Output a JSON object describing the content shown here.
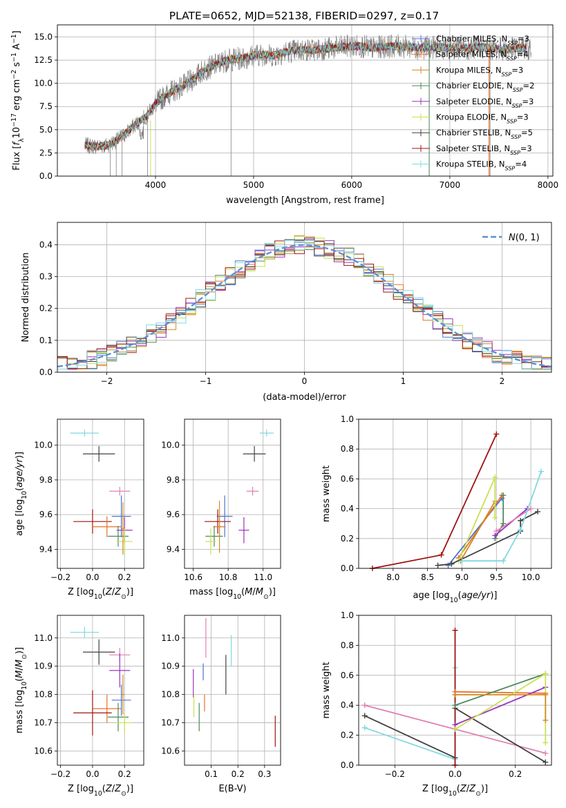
{
  "title": "PLATE=0652, MJD=52138, FIBERID=0297, z=0.17",
  "colors": {
    "chabrier_miles": "#4c72d0",
    "salpeter_miles": "#e8702a",
    "kroupa_miles": "#d08a20",
    "chabrier_elodie": "#4a8a5a",
    "salpeter_elodie": "#9b30c0",
    "kroupa_elodie": "#c8e050",
    "chabrier_stelib": "#404040",
    "salpeter_stelib": "#a01010",
    "kroupa_stelib": "#80d8e0",
    "pink": "#e080b0",
    "data": "#808080",
    "gauss": "#5b8fd6"
  },
  "chart_data": [
    {
      "type": "line",
      "id": "spectrum",
      "title": "PLATE=0652, MJD=52138, FIBERID=0297, z=0.17",
      "xlabel": "wavelength [Angstrom, rest frame]",
      "ylabel": "Flux [f_λ10^-17 erg cm^-2 s^-1 A^-1]",
      "xlim": [
        3000,
        8050
      ],
      "ylim": [
        0,
        16.3
      ],
      "xticks": [
        4000,
        5000,
        6000,
        7000,
        8000
      ],
      "yticks": [
        0.0,
        2.5,
        5.0,
        7.5,
        10.0,
        12.5,
        15.0
      ],
      "legend_position": "right",
      "legend": [
        "Chabrier MILES, N_SSP=3",
        "Salpeter MILES, N_SSP=4",
        "Kroupa MILES, N_SSP=3",
        "Chabrier ELODIE, N_SSP=2",
        "Salpeter ELODIE, N_SSP=3",
        "Kroupa ELODIE, N_SSP=3",
        "Chabrier STELIB, N_SSP=5",
        "Salpeter STELIB, N_SSP=3",
        "Kroupa STELIB, N_SSP=4"
      ],
      "continuum": [
        [
          3300,
          3.3
        ],
        [
          3400,
          3.2
        ],
        [
          3500,
          3.3
        ],
        [
          3600,
          3.8
        ],
        [
          3700,
          4.6
        ],
        [
          3800,
          5.6
        ],
        [
          3900,
          6.4
        ],
        [
          4000,
          7.8
        ],
        [
          4100,
          8.7
        ],
        [
          4200,
          9.3
        ],
        [
          4300,
          9.8
        ],
        [
          4400,
          10.6
        ],
        [
          4500,
          11.5
        ],
        [
          4600,
          11.9
        ],
        [
          4700,
          12.4
        ],
        [
          4800,
          12.6
        ],
        [
          4900,
          12.7
        ],
        [
          5000,
          13.0
        ],
        [
          5100,
          13.1
        ],
        [
          5200,
          13.0
        ],
        [
          5300,
          13.3
        ],
        [
          5400,
          13.5
        ],
        [
          5500,
          13.6
        ],
        [
          5600,
          13.6
        ],
        [
          5700,
          13.7
        ],
        [
          5800,
          13.8
        ],
        [
          5900,
          13.9
        ],
        [
          6000,
          14.0
        ],
        [
          6100,
          14.0
        ],
        [
          6200,
          13.8
        ],
        [
          6300,
          13.9
        ],
        [
          6400,
          14.0
        ],
        [
          6500,
          14.0
        ],
        [
          6600,
          13.9
        ],
        [
          6700,
          13.8
        ],
        [
          6800,
          13.9
        ],
        [
          6900,
          13.9
        ],
        [
          7000,
          13.8
        ],
        [
          7100,
          13.8
        ],
        [
          7200,
          13.8
        ],
        [
          7300,
          13.9
        ],
        [
          7400,
          13.8
        ],
        [
          7500,
          13.7
        ],
        [
          7600,
          13.7
        ],
        [
          7700,
          13.8
        ],
        [
          7800,
          13.8
        ]
      ]
    },
    {
      "type": "line",
      "id": "residuals",
      "xlabel": "(data-model)/error",
      "ylabel": "Normed distribution",
      "xlim": [
        -2.5,
        2.5
      ],
      "ylim": [
        0,
        0.47
      ],
      "xticks": [
        -2,
        -1,
        0,
        1,
        2
      ],
      "yticks": [
        0.0,
        0.1,
        0.2,
        0.3,
        0.4
      ],
      "legend": [
        "N(0,1)"
      ],
      "legend_position": "top-right"
    },
    {
      "type": "scatter",
      "id": "age_vs_Z",
      "xlabel": "Z [log10(Z/Z⊙)]",
      "ylabel": "age [log10(age/yr)]",
      "xlim": [
        -0.22,
        0.32
      ],
      "ylim": [
        9.29,
        10.15
      ],
      "xticks": [
        -0.2,
        0.0,
        0.2
      ],
      "yticks": [
        9.4,
        9.6,
        9.8,
        10.0
      ],
      "points": [
        {
          "x": -0.05,
          "y": 10.07,
          "dx": 0.18,
          "dy": 0.04,
          "c": "kroupa_stelib"
        },
        {
          "x": 0.04,
          "y": 9.95,
          "dx": 0.2,
          "dy": 0.09,
          "c": "chabrier_stelib"
        },
        {
          "x": 0.17,
          "y": 9.735,
          "dx": 0.13,
          "dy": 0.05,
          "c": "pink"
        },
        {
          "x": 0.18,
          "y": 9.59,
          "dx": 0.12,
          "dy": 0.24,
          "c": "chabrier_miles"
        },
        {
          "x": 0.0,
          "y": 9.56,
          "dx": 0.24,
          "dy": 0.14,
          "c": "salpeter_stelib"
        },
        {
          "x": 0.09,
          "y": 9.53,
          "dx": 0.18,
          "dy": 0.12,
          "c": "salpeter_miles"
        },
        {
          "x": 0.2,
          "y": 9.51,
          "dx": 0.1,
          "dy": 0.15,
          "c": "salpeter_elodie"
        },
        {
          "x": 0.16,
          "y": 9.475,
          "dx": 0.13,
          "dy": 0.12,
          "c": "chabrier_elodie"
        },
        {
          "x": 0.2,
          "y": 9.445,
          "dx": 0.1,
          "dy": 0.15,
          "c": "kroupa_elodie"
        },
        {
          "x": 0.19,
          "y": 9.52,
          "dx": 0.02,
          "dy": 0.3,
          "c": "kroupa_miles"
        }
      ]
    },
    {
      "type": "scatter",
      "id": "age_vs_mass",
      "xlabel": "mass [log10(M/M⊙)]",
      "ylabel": "",
      "xlim": [
        10.55,
        11.1
      ],
      "ylim": [
        9.29,
        10.15
      ],
      "xticks": [
        10.6,
        10.8,
        11.0
      ],
      "yticks": [
        9.4,
        9.6,
        9.8,
        10.0
      ],
      "points": [
        {
          "x": 11.02,
          "y": 10.07,
          "dx": 0.08,
          "dy": 0.04,
          "c": "kroupa_stelib"
        },
        {
          "x": 10.95,
          "y": 9.95,
          "dx": 0.13,
          "dy": 0.09,
          "c": "chabrier_stelib"
        },
        {
          "x": 10.94,
          "y": 9.735,
          "dx": 0.07,
          "dy": 0.05,
          "c": "pink"
        },
        {
          "x": 10.78,
          "y": 9.59,
          "dx": 0.09,
          "dy": 0.24,
          "c": "chabrier_miles"
        },
        {
          "x": 10.74,
          "y": 9.56,
          "dx": 0.15,
          "dy": 0.14,
          "c": "salpeter_stelib"
        },
        {
          "x": 10.75,
          "y": 9.53,
          "dx": 0.07,
          "dy": 0.12,
          "c": "salpeter_miles"
        },
        {
          "x": 10.89,
          "y": 9.51,
          "dx": 0.06,
          "dy": 0.15,
          "c": "salpeter_elodie"
        },
        {
          "x": 10.72,
          "y": 9.475,
          "dx": 0.1,
          "dy": 0.12,
          "c": "chabrier_elodie"
        },
        {
          "x": 10.7,
          "y": 9.445,
          "dx": 0.06,
          "dy": 0.15,
          "c": "kroupa_elodie"
        },
        {
          "x": 10.75,
          "y": 9.53,
          "dx": 0.02,
          "dy": 0.3,
          "c": "kroupa_miles"
        }
      ]
    },
    {
      "type": "line",
      "id": "weight_vs_age",
      "xlabel": "age [log10(age/yr)]",
      "ylabel": "mass weight",
      "xlim": [
        7.5,
        10.3
      ],
      "ylim": [
        0,
        1.0
      ],
      "xticks": [
        8.0,
        8.5,
        9.0,
        9.5,
        10.0
      ],
      "yticks": [
        0.0,
        0.2,
        0.4,
        0.6,
        0.8,
        1.0
      ],
      "series": [
        {
          "c": "salpeter_stelib",
          "points": [
            [
              7.7,
              0.0
            ],
            [
              8.7,
              0.09
            ],
            [
              9.5,
              0.9
            ]
          ]
        },
        {
          "c": "chabrier_miles",
          "points": [
            [
              8.8,
              0.02
            ],
            [
              9.58,
              0.47
            ]
          ]
        },
        {
          "c": "salpeter_miles",
          "points": [
            [
              8.95,
              0.07
            ],
            [
              9.58,
              0.49
            ]
          ]
        },
        {
          "c": "kroupa_miles",
          "points": [
            [
              8.98,
              0.05
            ],
            [
              9.48,
              0.45
            ]
          ]
        },
        {
          "c": "kroupa_elodie",
          "points": [
            [
              8.95,
              0.05
            ],
            [
              9.48,
              0.61
            ],
            [
              9.48,
              0.34
            ]
          ]
        },
        {
          "c": "chabrier_elodie",
          "points": [
            [
              9.48,
              0.2
            ],
            [
              9.6,
              0.3
            ],
            [
              9.6,
              0.49
            ]
          ]
        },
        {
          "c": "salpeter_elodie",
          "points": [
            [
              9.48,
              0.22
            ],
            [
              9.95,
              0.4
            ]
          ]
        },
        {
          "c": "pink",
          "points": [
            [
              9.5,
              0.25
            ],
            [
              10.0,
              0.4
            ]
          ]
        },
        {
          "c": "chabrier_stelib",
          "points": [
            [
              8.65,
              0.02
            ],
            [
              8.85,
              0.03
            ],
            [
              9.85,
              0.25
            ],
            [
              9.85,
              0.32
            ],
            [
              10.1,
              0.38
            ]
          ]
        },
        {
          "c": "kroupa_stelib",
          "points": [
            [
              9.0,
              0.05
            ],
            [
              9.6,
              0.05
            ],
            [
              9.85,
              0.26
            ],
            [
              10.15,
              0.65
            ]
          ]
        }
      ]
    },
    {
      "type": "scatter",
      "id": "mass_vs_Z",
      "xlabel": "Z [log10(Z/Z⊙)]",
      "ylabel": "mass [log10(M/M⊙)]",
      "xlim": [
        -0.22,
        0.32
      ],
      "ylim": [
        10.55,
        11.08
      ],
      "xticks": [
        -0.2,
        0.0,
        0.2
      ],
      "yticks": [
        10.6,
        10.7,
        10.8,
        10.9,
        11.0
      ],
      "points": [
        {
          "x": -0.05,
          "y": 11.02,
          "dx": 0.18,
          "dy": 0.04,
          "c": "kroupa_stelib"
        },
        {
          "x": 0.04,
          "y": 10.95,
          "dx": 0.2,
          "dy": 0.09,
          "c": "chabrier_stelib"
        },
        {
          "x": 0.17,
          "y": 10.94,
          "dx": 0.13,
          "dy": 0.05,
          "c": "pink"
        },
        {
          "x": 0.17,
          "y": 10.885,
          "dx": 0.13,
          "dy": 0.12,
          "c": "salpeter_elodie"
        },
        {
          "x": 0.18,
          "y": 10.78,
          "dx": 0.12,
          "dy": 0.11,
          "c": "chabrier_miles"
        },
        {
          "x": 0.09,
          "y": 10.75,
          "dx": 0.18,
          "dy": 0.1,
          "c": "salpeter_miles"
        },
        {
          "x": 0.0,
          "y": 10.735,
          "dx": 0.24,
          "dy": 0.16,
          "c": "salpeter_stelib"
        },
        {
          "x": 0.16,
          "y": 10.72,
          "dx": 0.13,
          "dy": 0.1,
          "c": "chabrier_elodie"
        },
        {
          "x": 0.2,
          "y": 10.7,
          "dx": 0.1,
          "dy": 0.07,
          "c": "kroupa_elodie"
        },
        {
          "x": 0.19,
          "y": 10.8,
          "dx": 0.02,
          "dy": 0.14,
          "c": "kroupa_miles"
        }
      ]
    },
    {
      "type": "scatter",
      "id": "mass_vs_ebv",
      "xlabel": "E(B-V)",
      "ylabel": "",
      "xlim": [
        0.0,
        0.36
      ],
      "ylim": [
        10.55,
        11.08
      ],
      "xticks": [
        0.1,
        0.2,
        0.3
      ],
      "yticks": [
        10.6,
        10.7,
        10.8,
        10.9,
        11.0
      ],
      "points": [
        {
          "x": 0.033,
          "y": 10.84,
          "dy": 0.1,
          "c": "salpeter_elodie"
        },
        {
          "x": 0.035,
          "y": 10.76,
          "dy": 0.08,
          "c": "kroupa_elodie"
        },
        {
          "x": 0.055,
          "y": 10.72,
          "dy": 0.1,
          "c": "chabrier_elodie"
        },
        {
          "x": 0.07,
          "y": 10.88,
          "dy": 0.06,
          "c": "chabrier_miles"
        },
        {
          "x": 0.075,
          "y": 10.77,
          "dy": 0.06,
          "c": "salpeter_miles"
        },
        {
          "x": 0.08,
          "y": 11.0,
          "dy": 0.14,
          "c": "pink"
        },
        {
          "x": 0.155,
          "y": 10.87,
          "dy": 0.14,
          "c": "chabrier_stelib"
        },
        {
          "x": 0.175,
          "y": 10.955,
          "dy": 0.11,
          "c": "kroupa_stelib"
        },
        {
          "x": 0.34,
          "y": 10.67,
          "dy": 0.11,
          "c": "salpeter_stelib"
        }
      ]
    },
    {
      "type": "line",
      "id": "weight_vs_Z",
      "xlabel": "Z [log10(Z/Z⊙)]",
      "ylabel": "mass weight",
      "xlim": [
        -0.32,
        0.32
      ],
      "ylim": [
        0,
        1.0
      ],
      "xticks": [
        -0.2,
        0.0,
        0.2
      ],
      "yticks": [
        0.0,
        0.2,
        0.4,
        0.6,
        0.8,
        1.0
      ],
      "series": [
        {
          "c": "pink",
          "points": [
            [
              -0.3,
              0.4
            ],
            [
              0.0,
              0.24
            ],
            [
              0.3,
              0.08
            ]
          ]
        },
        {
          "c": "chabrier_stelib",
          "points": [
            [
              -0.3,
              0.33
            ],
            [
              0.0,
              0.05
            ],
            [
              0.0,
              0.38
            ],
            [
              0.3,
              0.02
            ]
          ]
        },
        {
          "c": "kroupa_stelib",
          "points": [
            [
              -0.3,
              0.25
            ],
            [
              0.0,
              0.04
            ],
            [
              0.0,
              0.65
            ]
          ]
        },
        {
          "c": "salpeter_stelib",
          "points": [
            [
              0.0,
              0.9
            ],
            [
              0.0,
              0.0
            ]
          ]
        },
        {
          "c": "salpeter_miles",
          "points": [
            [
              0.0,
              0.49
            ],
            [
              0.3,
              0.48
            ]
          ]
        },
        {
          "c": "chabrier_elodie",
          "points": [
            [
              0.0,
              0.4
            ],
            [
              0.3,
              0.61
            ]
          ]
        },
        {
          "c": "salpeter_elodie",
          "points": [
            [
              0.0,
              0.27
            ],
            [
              0.3,
              0.52
            ]
          ]
        },
        {
          "c": "kroupa_elodie",
          "points": [
            [
              0.0,
              0.24
            ],
            [
              0.3,
              0.61
            ],
            [
              0.3,
              0.15
            ]
          ]
        },
        {
          "c": "kroupa_miles",
          "points": [
            [
              0.0,
              0.47
            ],
            [
              0.3,
              0.47
            ],
            [
              0.3,
              0.3
            ]
          ]
        }
      ]
    }
  ]
}
